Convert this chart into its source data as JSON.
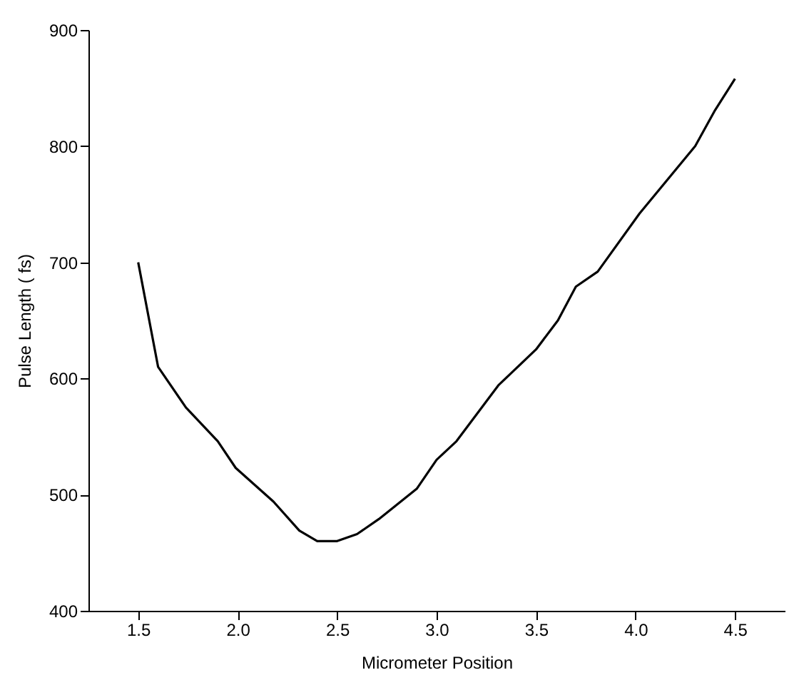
{
  "chart_data": {
    "type": "line",
    "xlabel": "Micrometer Position",
    "ylabel": "Pulse Length  ( fs)",
    "x": [
      1.5,
      1.6,
      1.74,
      1.9,
      1.99,
      2.18,
      2.31,
      2.4,
      2.5,
      2.6,
      2.71,
      2.9,
      3.0,
      3.1,
      3.31,
      3.5,
      3.61,
      3.7,
      3.81,
      4.02,
      4.3,
      4.4,
      4.5
    ],
    "series": [
      {
        "color": "#000000",
        "values": [
          700,
          610,
          575,
          546,
          523,
          494,
          469,
          460,
          460,
          466,
          479,
          505,
          530,
          546,
          594,
          625,
          650,
          679,
          692,
          742,
          800,
          831,
          858
        ]
      }
    ],
    "xlim": [
      1.25,
      4.75
    ],
    "xticks": [
      1.5,
      {
        "value": 2,
        "label": "2.0"
      },
      2.5,
      {
        "value": 3,
        "label": "3.0"
      },
      3.5,
      {
        "value": 4,
        "label": "4.0"
      },
      4.5
    ],
    "ylim": [
      400,
      900
    ],
    "yticks": [
      400,
      500,
      600,
      700,
      800,
      900
    ],
    "grid": false,
    "marker": "none",
    "line_style": "solid"
  }
}
